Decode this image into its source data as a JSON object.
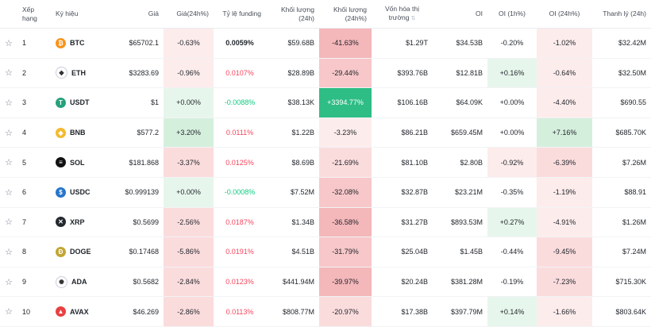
{
  "headers": {
    "rank": "Xếp hạng",
    "symbol": "Ký hiệu",
    "price": "Giá",
    "price_change": "Giá(24h%)",
    "funding": "Tỷ lệ funding",
    "volume": "Khối lượng (24h)",
    "volume_change": "Khối lượng (24h%)",
    "market_cap": "Vốn hóa thị trường",
    "oi": "OI",
    "oi_1h": "OI (1h%)",
    "oi_24h": "OI (24h%)",
    "liquidation": "Thanh lý (24h)"
  },
  "rows": [
    {
      "rank": "1",
      "symbol": "BTC",
      "icon": "bitcoin-icon",
      "icon_color": "#f7931a",
      "glyph": "₿",
      "price": "$65702.1",
      "price_change": "-0.63%",
      "funding": "0.0059%",
      "volume": "$59.68B",
      "volume_change": "-41.63%",
      "market_cap": "$1.29T",
      "oi": "$34.53B",
      "oi_1h": "-0.20%",
      "oi_24h": "-1.02%",
      "liquidation": "$32.42M"
    },
    {
      "rank": "2",
      "symbol": "ETH",
      "icon": "ethereum-icon",
      "icon_color": "#ffffff",
      "glyph": "◆",
      "price": "$3283.69",
      "price_change": "-0.96%",
      "funding": "0.0107%",
      "volume": "$28.89B",
      "volume_change": "-29.44%",
      "market_cap": "$393.76B",
      "oi": "$12.81B",
      "oi_1h": "+0.16%",
      "oi_24h": "-0.64%",
      "liquidation": "$32.50M"
    },
    {
      "rank": "3",
      "symbol": "USDT",
      "icon": "tether-icon",
      "icon_color": "#26a17b",
      "glyph": "T",
      "price": "$1",
      "price_change": "+0.00%",
      "funding": "-0.0088%",
      "volume": "$38.13K",
      "volume_change": "+3394.77%",
      "market_cap": "$106.16B",
      "oi": "$64.09K",
      "oi_1h": "+0.00%",
      "oi_24h": "-4.40%",
      "liquidation": "$690.55"
    },
    {
      "rank": "4",
      "symbol": "BNB",
      "icon": "bnb-icon",
      "icon_color": "#f3ba2f",
      "glyph": "◈",
      "price": "$577.2",
      "price_change": "+3.20%",
      "funding": "0.0111%",
      "volume": "$1.22B",
      "volume_change": "-3.23%",
      "market_cap": "$86.21B",
      "oi": "$659.45M",
      "oi_1h": "+0.00%",
      "oi_24h": "+7.16%",
      "liquidation": "$685.70K"
    },
    {
      "rank": "5",
      "symbol": "SOL",
      "icon": "solana-icon",
      "icon_color": "#111111",
      "glyph": "≡",
      "price": "$181.868",
      "price_change": "-3.37%",
      "funding": "0.0125%",
      "volume": "$8.69B",
      "volume_change": "-21.69%",
      "market_cap": "$81.10B",
      "oi": "$2.80B",
      "oi_1h": "-0.92%",
      "oi_24h": "-6.39%",
      "liquidation": "$7.26M"
    },
    {
      "rank": "6",
      "symbol": "USDC",
      "icon": "usdc-icon",
      "icon_color": "#2775ca",
      "glyph": "$",
      "price": "$0.999139",
      "price_change": "+0.00%",
      "funding": "-0.0008%",
      "volume": "$7.52M",
      "volume_change": "-32.08%",
      "market_cap": "$32.87B",
      "oi": "$23.21M",
      "oi_1h": "-0.35%",
      "oi_24h": "-1.19%",
      "liquidation": "$88.91"
    },
    {
      "rank": "7",
      "symbol": "XRP",
      "icon": "xrp-icon",
      "icon_color": "#23292f",
      "glyph": "✕",
      "price": "$0.5699",
      "price_change": "-2.56%",
      "funding": "0.0187%",
      "volume": "$1.34B",
      "volume_change": "-36.58%",
      "market_cap": "$31.27B",
      "oi": "$893.53M",
      "oi_1h": "+0.27%",
      "oi_24h": "-4.91%",
      "liquidation": "$1.26M"
    },
    {
      "rank": "8",
      "symbol": "DOGE",
      "icon": "doge-icon",
      "icon_color": "#c2a633",
      "glyph": "Ð",
      "price": "$0.17468",
      "price_change": "-5.86%",
      "funding": "0.0191%",
      "volume": "$4.51B",
      "volume_change": "-31.79%",
      "market_cap": "$25.04B",
      "oi": "$1.45B",
      "oi_1h": "-0.44%",
      "oi_24h": "-9.45%",
      "liquidation": "$7.24M"
    },
    {
      "rank": "9",
      "symbol": "ADA",
      "icon": "cardano-icon",
      "icon_color": "#ffffff",
      "glyph": "✺",
      "price": "$0.5682",
      "price_change": "-2.84%",
      "funding": "0.0123%",
      "volume": "$441.94M",
      "volume_change": "-39.97%",
      "market_cap": "$20.24B",
      "oi": "$381.28M",
      "oi_1h": "-0.19%",
      "oi_24h": "-7.23%",
      "liquidation": "$715.30K"
    },
    {
      "rank": "10",
      "symbol": "AVAX",
      "icon": "avalanche-icon",
      "icon_color": "#e84142",
      "glyph": "▲",
      "price": "$46.269",
      "price_change": "-2.86%",
      "funding": "0.0113%",
      "volume": "$808.77M",
      "volume_change": "-20.97%",
      "market_cap": "$17.38B",
      "oi": "$397.79M",
      "oi_1h": "+0.14%",
      "oi_24h": "-1.66%",
      "liquidation": "$803.64K"
    }
  ]
}
